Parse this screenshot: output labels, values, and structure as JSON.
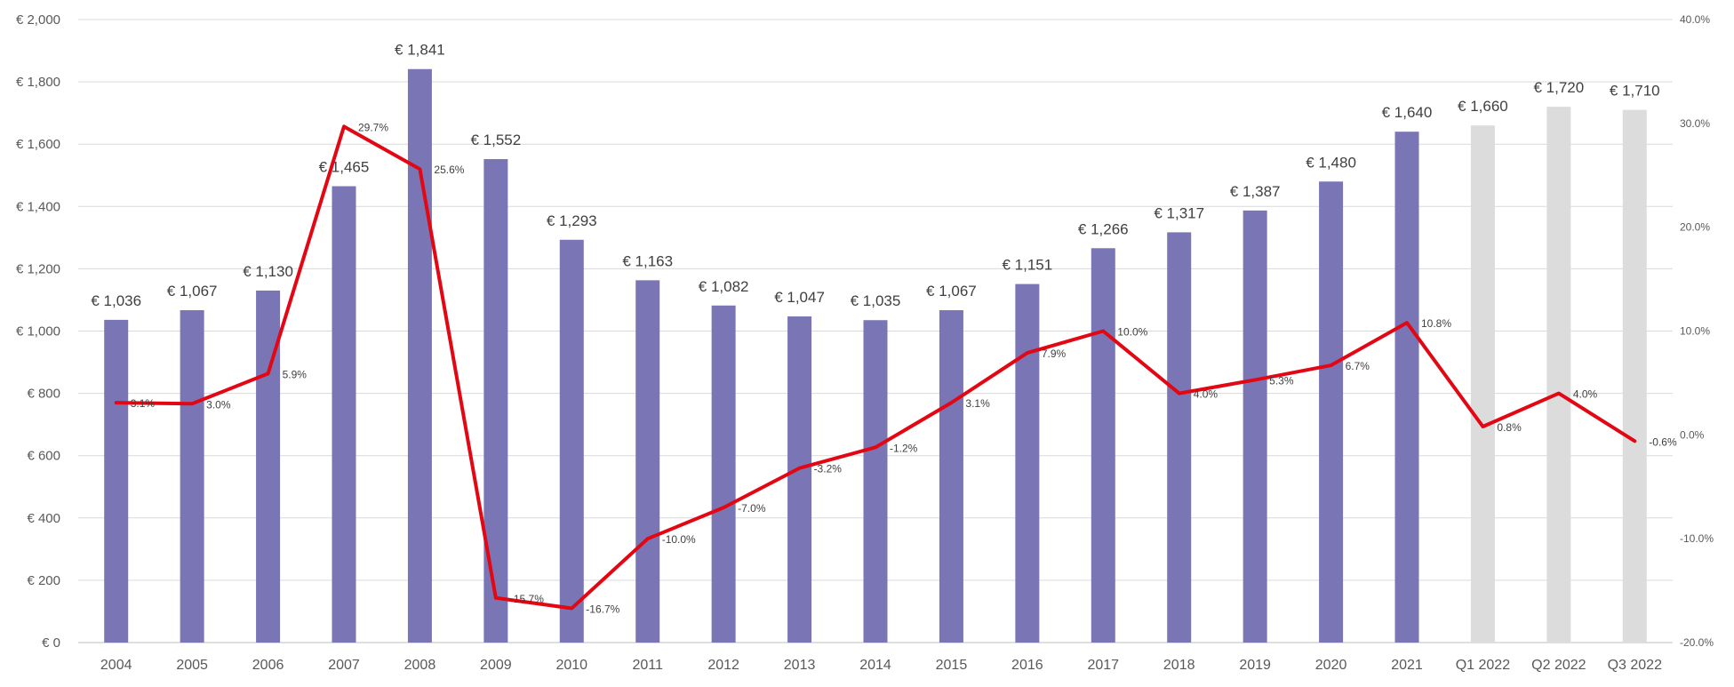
{
  "chart_data": {
    "type": "bar",
    "categories": [
      "2004",
      "2005",
      "2006",
      "2007",
      "2008",
      "2009",
      "2010",
      "2011",
      "2012",
      "2013",
      "2014",
      "2015",
      "2016",
      "2017",
      "2018",
      "2019",
      "2020",
      "2021",
      "Q1 2022",
      "Q2 2022",
      "Q3 2022"
    ],
    "bar_values": [
      1036,
      1067,
      1130,
      1465,
      1841,
      1552,
      1293,
      1163,
      1082,
      1047,
      1035,
      1067,
      1151,
      1266,
      1317,
      1387,
      1480,
      1640,
      1660,
      1720,
      1710
    ],
    "bar_labels": [
      "€ 1,036",
      "€ 1,067",
      "€ 1,130",
      "€ 1,465",
      "€ 1,841",
      "€ 1,552",
      "€ 1,293",
      "€ 1,163",
      "€ 1,082",
      "€ 1,047",
      "€ 1,035",
      "€ 1,067",
      "€ 1,151",
      "€ 1,266",
      "€ 1,317",
      "€ 1,387",
      "€ 1,480",
      "€ 1,640",
      "€ 1,660",
      "€ 1,720",
      "€ 1,710"
    ],
    "line_values": [
      3.1,
      3.0,
      5.9,
      29.7,
      25.6,
      -15.7,
      -16.7,
      -10.0,
      -7.0,
      -3.2,
      -1.2,
      3.1,
      7.9,
      10.0,
      4.0,
      5.3,
      6.7,
      10.8,
      0.8,
      4.0,
      -0.6
    ],
    "line_labels": [
      "3.1%",
      "3.0%",
      "5.9%",
      "29.7%",
      "25.6%",
      "-15.7%",
      "-16.7%",
      "-10.0%",
      "-7.0%",
      "-3.2%",
      "-1.2%",
      "3.1%",
      "7.9%",
      "10.0%",
      "4.0%",
      "5.3%",
      "6.7%",
      "10.8%",
      "0.8%",
      "4.0%",
      "-0.6%"
    ],
    "bar_colors": [
      "#7a76b6",
      "#7a76b6",
      "#7a76b6",
      "#7a76b6",
      "#7a76b6",
      "#7a76b6",
      "#7a76b6",
      "#7a76b6",
      "#7a76b6",
      "#7a76b6",
      "#7a76b6",
      "#7a76b6",
      "#7a76b6",
      "#7a76b6",
      "#7a76b6",
      "#7a76b6",
      "#7a76b6",
      "#7a76b6",
      "#dcdcdc",
      "#dcdcdc",
      "#dcdcdc"
    ],
    "line_color": "#e30613",
    "y_left": {
      "ylim": [
        0,
        2000
      ],
      "ticks": [
        0,
        200,
        400,
        600,
        800,
        1000,
        1200,
        1400,
        1600,
        1800,
        2000
      ],
      "tick_labels": [
        "€ 0",
        "€ 200",
        "€ 400",
        "€ 600",
        "€ 800",
        "€ 1,000",
        "€ 1,200",
        "€ 1,400",
        "€ 1,600",
        "€ 1,800",
        "€ 2,000"
      ]
    },
    "y_right": {
      "ylim": [
        -20,
        40
      ],
      "ticks": [
        -20,
        -10,
        0,
        10,
        20,
        30,
        40
      ],
      "tick_labels": [
        "-20.0%",
        "-10.0%",
        "0.0%",
        "10.0%",
        "20.0%",
        "30.0%",
        "40.0%"
      ]
    },
    "grid": true,
    "legend": false,
    "title": "",
    "xlabel": "",
    "ylabel": ""
  }
}
